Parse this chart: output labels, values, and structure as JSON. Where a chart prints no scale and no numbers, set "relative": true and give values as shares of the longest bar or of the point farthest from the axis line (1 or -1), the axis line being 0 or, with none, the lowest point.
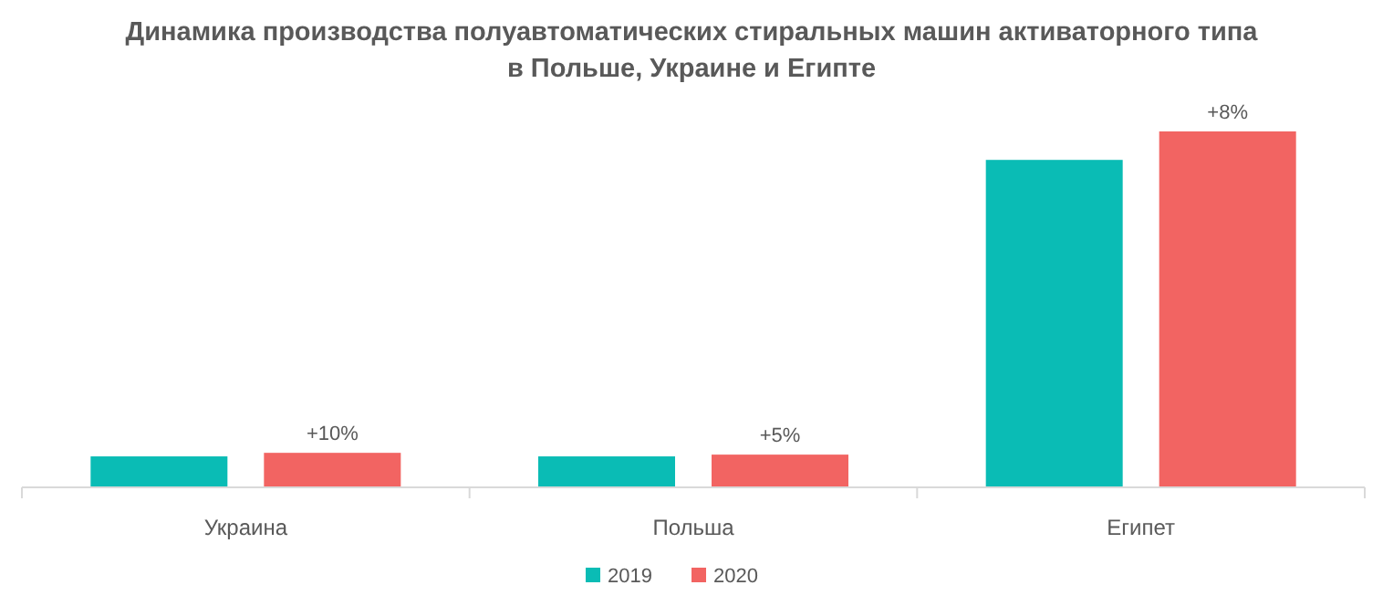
{
  "chart_data": {
    "type": "bar",
    "title": "Динамика производства полуавтоматических стиральных машин активаторного типа в Польше, Украине и Египте",
    "categories": [
      "Украина",
      "Польша",
      "Египет"
    ],
    "relative": true,
    "legend": "bottom",
    "series": [
      {
        "name": "2019",
        "color": "#0abcb5",
        "values": [
          0.087,
          0.087,
          0.92
        ]
      },
      {
        "name": "2020",
        "color": "#f26462",
        "values": [
          0.097,
          0.092,
          1
        ]
      }
    ],
    "annotations": [
      "+10%",
      "+5%",
      "+8%"
    ]
  }
}
